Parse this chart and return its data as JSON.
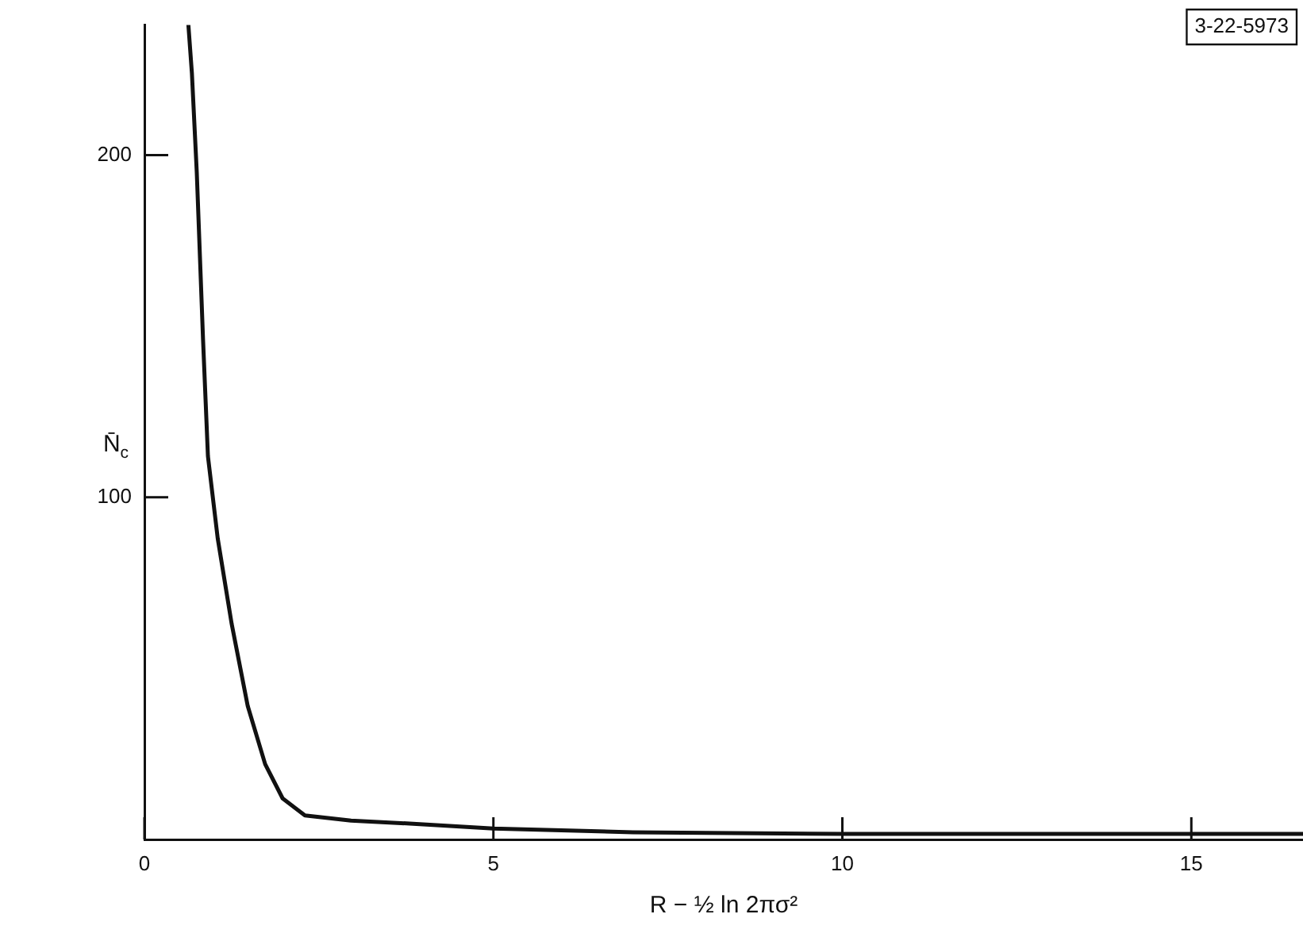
{
  "chart_data": {
    "type": "line",
    "xlabel": "R − ½ ln 2πσ²",
    "ylabel": "N̄$_{c}$",
    "x": [
      0.63,
      0.68,
      0.75,
      0.84,
      0.91,
      1.05,
      1.25,
      1.48,
      1.73,
      1.98,
      2.3,
      2.96,
      3.85,
      5,
      7,
      10,
      15,
      16.6
    ],
    "series": [
      {
        "color": "#111111",
        "values": [
          238,
          224,
          195,
          146,
          112,
          88,
          63,
          39,
          22,
          12,
          7,
          5.5,
          4.6,
          3.2,
          2.1,
          1.6,
          1.6,
          1.6
        ]
      }
    ],
    "xlim": [
      0,
      16.6
    ],
    "ylim": [
      0,
      238
    ],
    "xticks": [
      0,
      5,
      10,
      15
    ],
    "yticks": [
      100,
      200
    ],
    "grid": false,
    "legend": false,
    "marker": "none",
    "line_style": "solid",
    "annotations": [
      "3-22-5973"
    ]
  }
}
